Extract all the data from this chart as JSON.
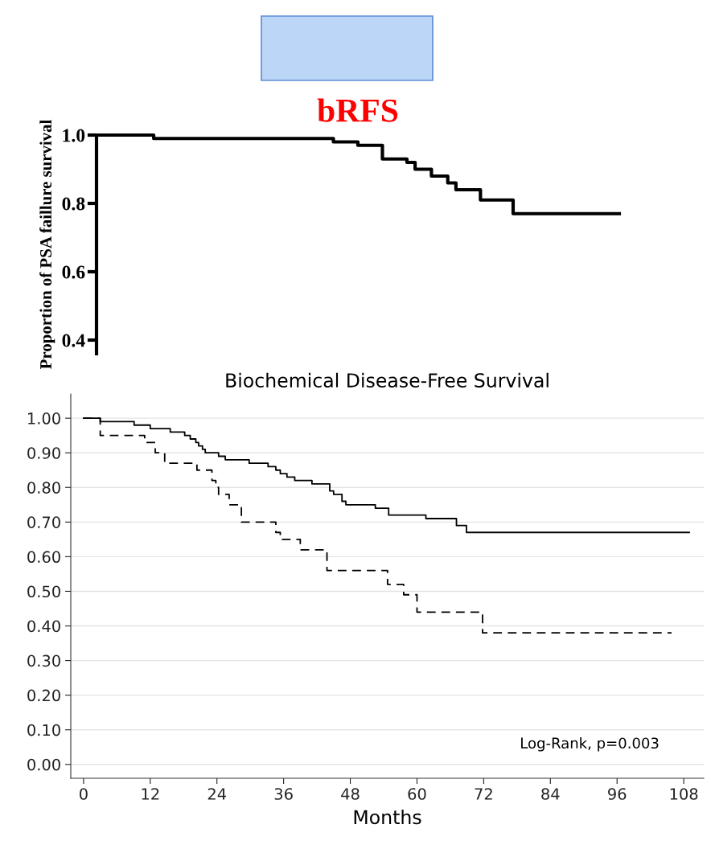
{
  "chart_data": [
    {
      "type": "step",
      "title": "bRFS",
      "ylabel": "Proportion of PSA faillure survival",
      "tick_labels": "y",
      "grid": false,
      "legend": false,
      "categories": [
        null,
        null,
        null,
        null,
        null,
        null,
        null,
        null,
        null,
        null,
        null,
        null,
        null,
        null,
        null,
        null,
        null,
        null,
        null,
        null,
        null,
        null,
        null,
        null,
        null,
        null,
        null,
        null,
        null,
        null,
        null,
        null,
        null,
        null,
        null,
        null,
        null,
        null,
        null,
        null,
        null,
        null,
        null,
        null,
        null,
        null,
        null,
        null,
        null,
        null,
        null,
        null,
        null,
        null,
        null,
        null,
        null,
        null,
        null,
        null,
        null,
        null,
        null,
        null,
        null
      ],
      "series": [
        {
          "color": "#000000",
          "line_style": "solid",
          "values": [
            1.0,
            1.0,
            1.0,
            1.0,
            1.0,
            1.0,
            1.0,
            0.99,
            0.99,
            0.99,
            0.99,
            0.99,
            0.99,
            0.99,
            0.99,
            0.99,
            0.99,
            0.99,
            0.99,
            0.99,
            0.99,
            0.99,
            0.99,
            0.99,
            0.99,
            0.99,
            0.99,
            0.99,
            0.99,
            0.98,
            0.98,
            0.98,
            0.97,
            0.97,
            0.97,
            0.93,
            0.93,
            0.93,
            0.92,
            0.9,
            0.9,
            0.88,
            0.88,
            0.86,
            0.84,
            0.84,
            0.84,
            0.81,
            0.81,
            0.81,
            0.81,
            0.77,
            0.77,
            0.77,
            0.77,
            0.77,
            0.77,
            0.77,
            0.77,
            0.77,
            0.77,
            0.77,
            0.77,
            0.77,
            0.77
          ]
        }
      ],
      "ylim": [
        0.36,
        1.0
      ],
      "yticks": [
        {
          "value": 1.0,
          "label": "1.0"
        },
        {
          "value": 0.8,
          "label": "0.8"
        },
        {
          "value": 0.6,
          "label": "0.6"
        },
        {
          "value": 0.4,
          "label": "0.4"
        }
      ]
    },
    {
      "type": "step",
      "title": "Biochemical Disease-Free Survival",
      "xlabel": "Months",
      "grid": "y",
      "legend": false,
      "annotations": [
        "Log-Rank, p=0.003"
      ],
      "series": [
        {
          "color": "#000000",
          "line_style": "solid",
          "x": [
            0,
            3.0,
            9.1,
            12.0,
            15.6,
            18.2,
            19.2,
            20.2,
            20.7,
            21.4,
            21.9,
            24.3,
            25.5,
            29.8,
            33.2,
            34.6,
            35.4,
            36.6,
            38.0,
            41.1,
            44.3,
            45.0,
            46.5,
            47.2,
            52.5,
            54.9,
            61.6,
            67.1,
            68.9,
            109
          ],
          "values": [
            1.0,
            0.99,
            0.98,
            0.97,
            0.96,
            0.95,
            0.94,
            0.93,
            0.92,
            0.91,
            0.9,
            0.89,
            0.88,
            0.87,
            0.86,
            0.85,
            0.84,
            0.83,
            0.82,
            0.81,
            0.79,
            0.78,
            0.76,
            0.75,
            0.74,
            0.72,
            0.71,
            0.69,
            0.67,
            0.67
          ]
        },
        {
          "color": "#000000",
          "line_style": "dashed",
          "x": [
            0,
            3.0,
            11.0,
            12.9,
            14.6,
            20.4,
            23.1,
            23.8,
            24.3,
            26.2,
            28.4,
            34.6,
            35.4,
            39.0,
            43.8,
            54.7,
            57.6,
            60.0,
            71.8,
            105.8
          ],
          "values": [
            1.0,
            0.95,
            0.93,
            0.9,
            0.87,
            0.85,
            0.82,
            0.8,
            0.78,
            0.75,
            0.7,
            0.67,
            0.65,
            0.62,
            0.56,
            0.52,
            0.49,
            0.44,
            0.38,
            0.38
          ]
        }
      ],
      "xlim": [
        -2.3,
        111.6
      ],
      "xticks": [
        0,
        12,
        24,
        36,
        48,
        60,
        72,
        84,
        96,
        108
      ],
      "ylim": [
        -0.04,
        1.07
      ],
      "yticks": [
        {
          "value": 0,
          "label": "0.00"
        },
        {
          "value": 0.1,
          "label": "0.10"
        },
        {
          "value": 0.2,
          "label": "0.20"
        },
        {
          "value": 0.3,
          "label": "0.30"
        },
        {
          "value": 0.4,
          "label": "0.40"
        },
        {
          "value": 0.5,
          "label": "0.50"
        },
        {
          "value": 0.6,
          "label": "0.60"
        },
        {
          "value": 0.7,
          "label": "0.70"
        },
        {
          "value": 0.8,
          "label": "0.80"
        },
        {
          "value": 0.9,
          "label": "0.90"
        },
        {
          "value": 1.0,
          "label": "1.00"
        }
      ]
    }
  ]
}
